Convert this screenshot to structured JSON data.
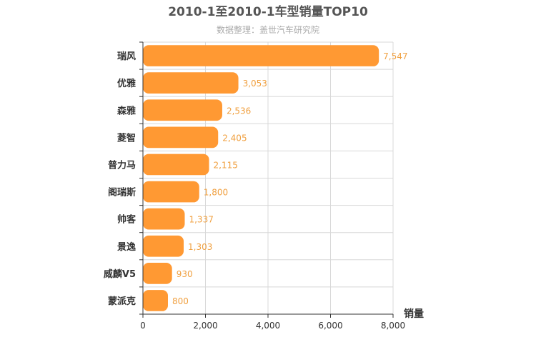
{
  "chart_data": {
    "type": "bar",
    "orientation": "horizontal",
    "title": "2010-1至2010-1车型销量TOP10",
    "subtitle": "数据整理：盖世汽车研究院",
    "xlabel": "销量",
    "ylabel": "",
    "categories": [
      "瑞风",
      "优雅",
      "森雅",
      "菱智",
      "普力马",
      "阁瑞斯",
      "帅客",
      "景逸",
      "威麟V5",
      "蒙派克"
    ],
    "values": [
      7547,
      3053,
      2536,
      2405,
      2115,
      1800,
      1337,
      1303,
      930,
      800
    ],
    "value_labels": [
      "7,547",
      "3,053",
      "2,536",
      "2,405",
      "2,115",
      "1,800",
      "1,337",
      "1,303",
      "930",
      "800"
    ],
    "xlim": [
      0,
      8000
    ],
    "xticks": [
      0,
      2000,
      4000,
      6000,
      8000
    ],
    "xtick_labels": [
      "0",
      "2,000",
      "4,000",
      "6,000",
      "8,000"
    ],
    "grid": true,
    "legend": "none",
    "colors": {
      "bar": "#ff9933",
      "value_label": "#f0a040"
    }
  }
}
